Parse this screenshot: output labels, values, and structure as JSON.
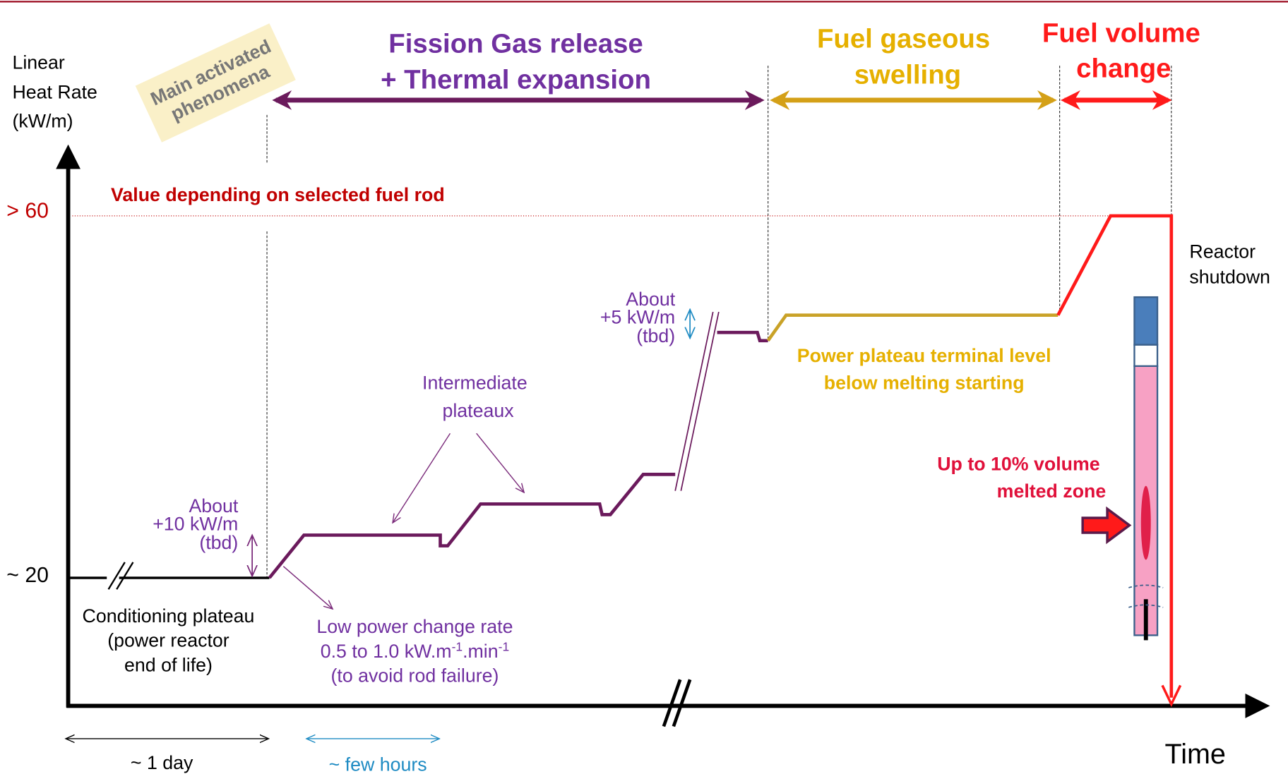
{
  "y_axis_label": [
    "Linear",
    "Heat Rate",
    "(kW/m)"
  ],
  "x_axis_label": "Time",
  "sticky_note": [
    "Main activated",
    "phenomena"
  ],
  "phases": [
    {
      "label": [
        "Fission Gas release",
        "+ Thermal expansion"
      ]
    },
    {
      "label": [
        "Fuel gaseous",
        "swelling"
      ]
    },
    {
      "label": [
        "Fuel volume",
        "change"
      ]
    }
  ],
  "levels": {
    "high": "> 60",
    "low": "~ 20"
  },
  "high_level_note": "Value depending on selected fuel rod",
  "shutdown": [
    "Reactor",
    "shutdown"
  ],
  "step_top": [
    "About",
    "+5 kW/m",
    "(tbd)"
  ],
  "terminal_plateau": [
    "Power plateau terminal  level",
    "below melting starting"
  ],
  "intermediate": [
    "Intermediate",
    "plateaux"
  ],
  "step_first": [
    "About",
    "+10 kW/m",
    "(tbd)"
  ],
  "conditioning": [
    "Conditioning plateau",
    "(power reactor",
    "end of life)"
  ],
  "ramp_rate": {
    "line1": "Low power change rate",
    "line2": [
      "0.5 to 1.0 kW.m",
      "-1",
      ".min",
      "-1"
    ],
    "line3": "(to avoid rod failure)"
  },
  "melted": [
    "Up to 10% volume",
    "melted zone"
  ],
  "durations": {
    "day": "~ 1 day",
    "hours": "~ few hours"
  }
}
